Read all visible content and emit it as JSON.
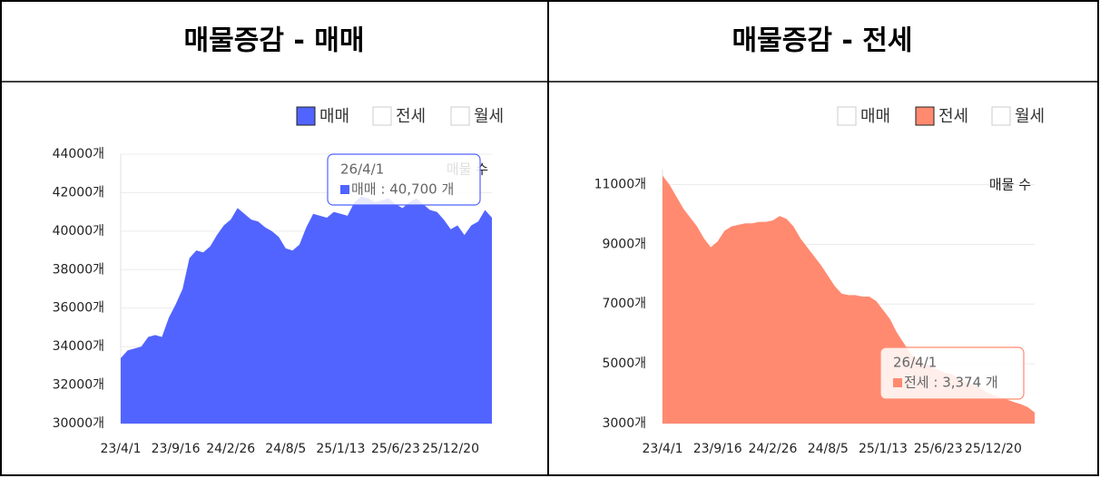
{
  "chart_data": [
    {
      "type": "area",
      "title": "매물증감 - 매매",
      "y_label": "매물 수",
      "color": "#5264ff",
      "legend": {
        "items": [
          "매매",
          "전세",
          "월세"
        ],
        "checked": [
          true,
          false,
          false
        ]
      },
      "tooltip": {
        "date": "26/4/1",
        "label": "매매 : 40,700 개"
      },
      "x": [
        "23/4/1",
        null,
        null,
        null,
        null,
        null,
        null,
        null,
        "23/9/16",
        null,
        null,
        null,
        null,
        null,
        null,
        null,
        "24/2/26",
        null,
        null,
        null,
        null,
        null,
        null,
        null,
        "24/8/5",
        null,
        null,
        null,
        null,
        null,
        null,
        null,
        "25/1/13",
        null,
        null,
        null,
        null,
        null,
        null,
        null,
        "25/6/23",
        null,
        null,
        null,
        null,
        null,
        null,
        null,
        "25/12/20",
        null,
        null,
        null,
        null,
        null,
        null
      ],
      "values": [
        33400,
        33800,
        33900,
        34000,
        34500,
        34600,
        34500,
        35500,
        36200,
        37000,
        38600,
        39000,
        38900,
        39200,
        39800,
        40300,
        40600,
        41200,
        40900,
        40600,
        40500,
        40200,
        40000,
        39700,
        39100,
        39000,
        39300,
        40200,
        40900,
        40800,
        40700,
        41000,
        40900,
        40800,
        41500,
        41800,
        41700,
        41500,
        41600,
        41700,
        41400,
        41200,
        41500,
        41700,
        41400,
        41100,
        41000,
        40600,
        40100,
        40300,
        39800,
        40300,
        40500,
        41100,
        40700
      ],
      "ylim": [
        30000,
        44000
      ],
      "yticks": [
        {
          "value": 30000,
          "label": "30000개"
        },
        {
          "value": 32000,
          "label": "32000개"
        },
        {
          "value": 34000,
          "label": "34000개"
        },
        {
          "value": 36000,
          "label": "36000개"
        },
        {
          "value": 38000,
          "label": "38000개"
        },
        {
          "value": 40000,
          "label": "40000개"
        },
        {
          "value": 42000,
          "label": "42000개"
        },
        {
          "value": 44000,
          "label": "44000개"
        }
      ],
      "grid": true
    },
    {
      "type": "area",
      "title": "매물증감 - 전세",
      "y_label": "매물 수",
      "color": "#ff8a70",
      "legend": {
        "items": [
          "매매",
          "전세",
          "월세"
        ],
        "checked": [
          false,
          true,
          false
        ]
      },
      "tooltip": {
        "date": "26/4/1",
        "label": "전세 : 3,374 개"
      },
      "x": [
        "23/4/1",
        null,
        null,
        null,
        null,
        null,
        null,
        null,
        "23/9/16",
        null,
        null,
        null,
        null,
        null,
        null,
        null,
        "24/2/26",
        null,
        null,
        null,
        null,
        null,
        null,
        null,
        "24/8/5",
        null,
        null,
        null,
        null,
        null,
        null,
        null,
        "25/1/13",
        null,
        null,
        null,
        null,
        null,
        null,
        null,
        "25/6/23",
        null,
        null,
        null,
        null,
        null,
        null,
        null,
        "25/12/20",
        null,
        null,
        null,
        null,
        null,
        null
      ],
      "values": [
        11300,
        11000,
        10600,
        10200,
        9900,
        9600,
        9200,
        8900,
        9100,
        9450,
        9600,
        9650,
        9700,
        9700,
        9750,
        9750,
        9800,
        9950,
        9850,
        9600,
        9200,
        8900,
        8600,
        8300,
        7950,
        7600,
        7350,
        7300,
        7300,
        7250,
        7250,
        7100,
        6800,
        6500,
        6050,
        5700,
        5350,
        5150,
        5000,
        4900,
        4800,
        4700,
        4650,
        4500,
        4420,
        4300,
        4200,
        4050,
        3950,
        3880,
        3800,
        3720,
        3650,
        3550,
        3374
      ],
      "ylim": [
        3000,
        11500
      ],
      "yticks": [
        {
          "value": 3000,
          "label": "3000개"
        },
        {
          "value": 5000,
          "label": "5000개"
        },
        {
          "value": 7000,
          "label": "7000개"
        },
        {
          "value": 9000,
          "label": "9000개"
        },
        {
          "value": 11000,
          "label": "11000개"
        }
      ],
      "grid": true
    }
  ]
}
